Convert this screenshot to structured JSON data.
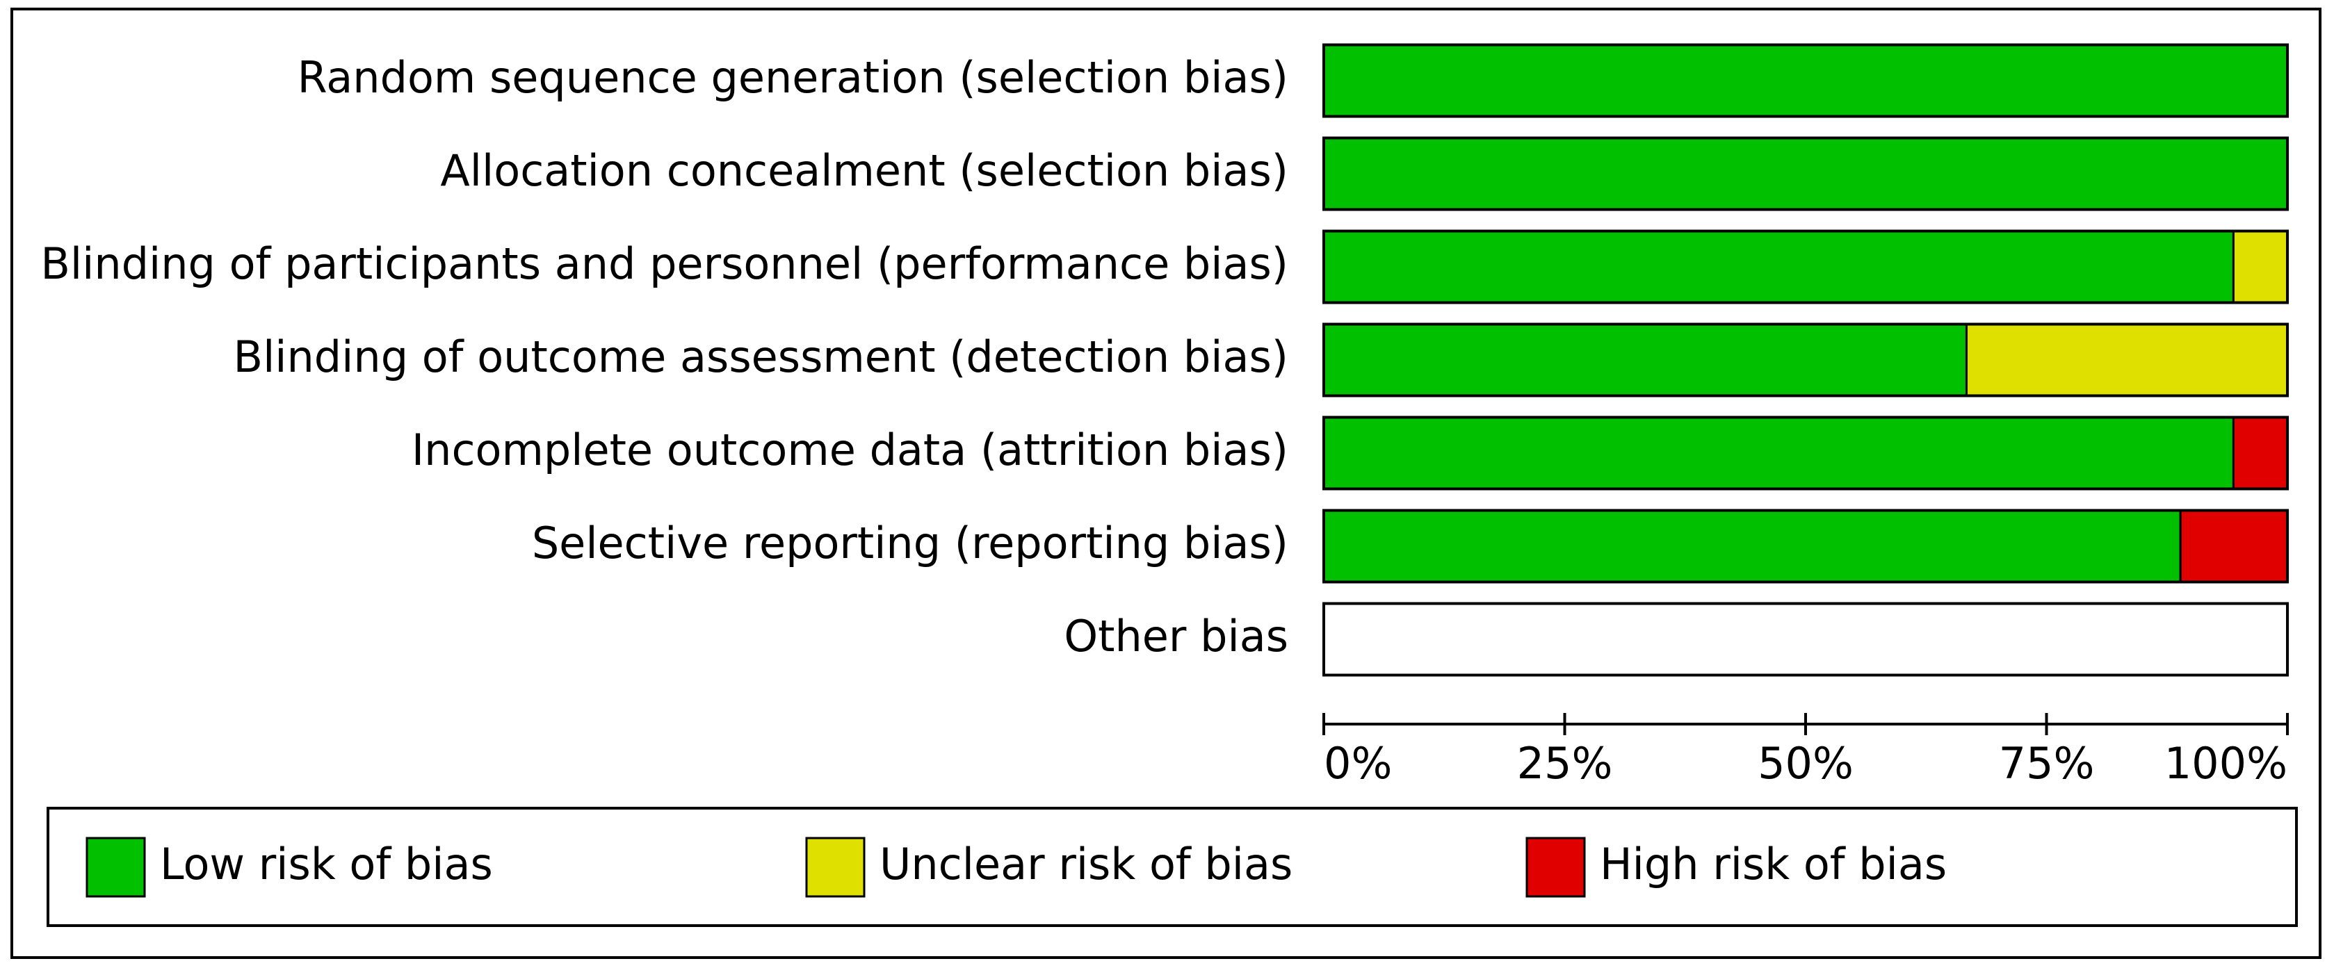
{
  "chart_data": {
    "type": "stacked-bar-horizontal",
    "categories": [
      "Random sequence generation (selection bias)",
      "Allocation concealment (selection bias)",
      "Blinding of participants and personnel (performance bias)",
      "Blinding of outcome assessment (detection bias)",
      "Incomplete outcome data (attrition bias)",
      "Selective reporting (reporting bias)",
      "Other bias"
    ],
    "series": [
      {
        "name": "Low risk of bias",
        "color": "#00c000",
        "values": [
          100,
          100,
          94.4,
          66.7,
          94.4,
          88.9,
          0
        ]
      },
      {
        "name": "Unclear risk of bias",
        "color": "#e0e000",
        "values": [
          0,
          0,
          5.6,
          33.3,
          0,
          0,
          0
        ]
      },
      {
        "name": "High risk of bias",
        "color": "#e00000",
        "values": [
          0,
          0,
          0,
          0,
          5.6,
          11.1,
          0
        ]
      }
    ],
    "xlim": [
      0,
      100
    ],
    "xticks": [
      {
        "value": 0,
        "label": "0%"
      },
      {
        "value": 25,
        "label": "25%"
      },
      {
        "value": 50,
        "label": "50%"
      },
      {
        "value": 75,
        "label": "75%"
      },
      {
        "value": 100,
        "label": "100%"
      }
    ],
    "legend": "bottom"
  }
}
